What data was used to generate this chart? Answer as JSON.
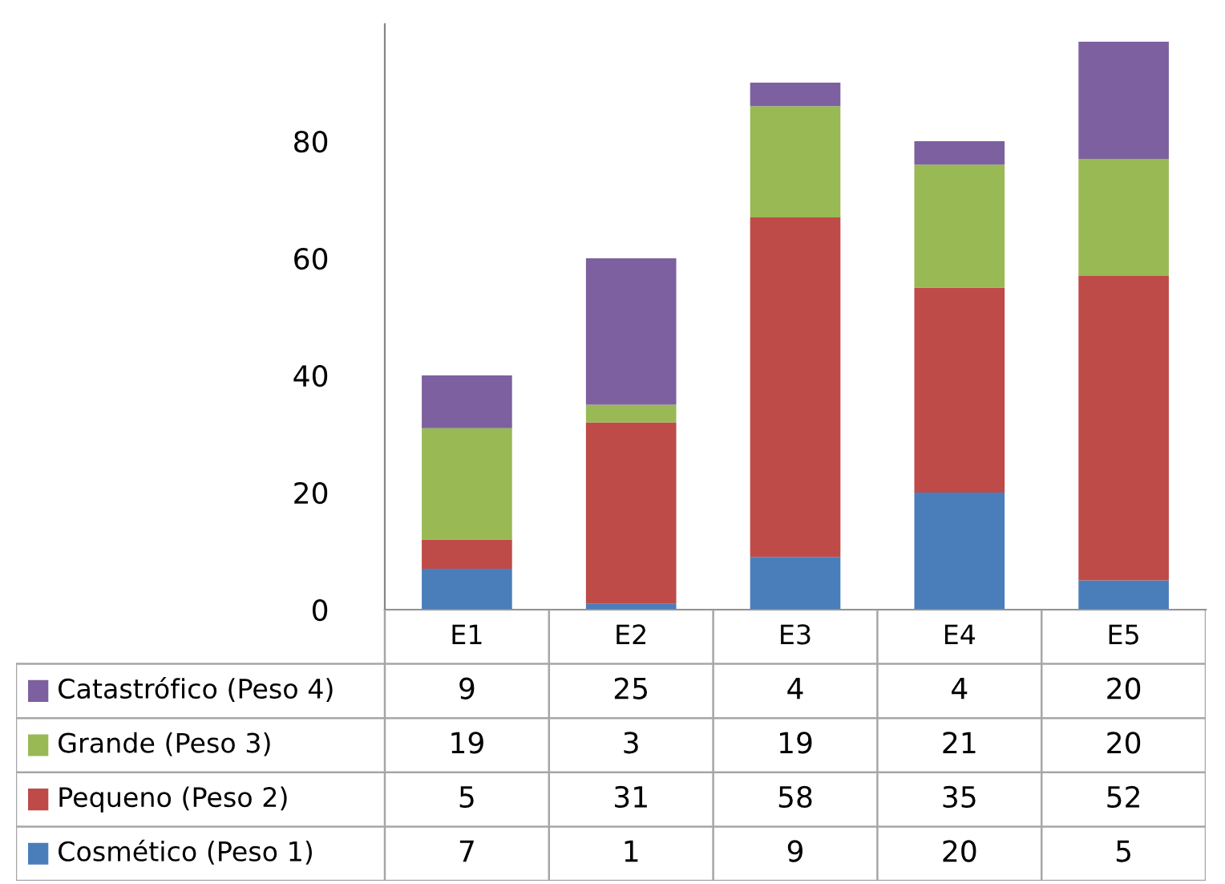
{
  "chart_data": {
    "type": "bar",
    "stacked": true,
    "categories": [
      "E1",
      "E2",
      "E3",
      "E4",
      "E5"
    ],
    "series": [
      {
        "name": "Cosmético (Peso 1)",
        "color": "#4a7ebb",
        "values": [
          7,
          1,
          9,
          20,
          5
        ]
      },
      {
        "name": "Pequeno (Peso 2)",
        "color": "#be4b48",
        "values": [
          5,
          31,
          58,
          35,
          52
        ]
      },
      {
        "name": "Grande (Peso 3)",
        "color": "#98b954",
        "values": [
          19,
          3,
          19,
          21,
          20
        ]
      },
      {
        "name": "Catastrófico (Peso 4)",
        "color": "#7d60a0",
        "values": [
          9,
          25,
          4,
          4,
          20
        ]
      }
    ],
    "ylim": [
      0,
      100
    ],
    "yticks": [
      0,
      20,
      40,
      60,
      80
    ],
    "grid": false,
    "legend": "bottom",
    "data_labels": true
  }
}
